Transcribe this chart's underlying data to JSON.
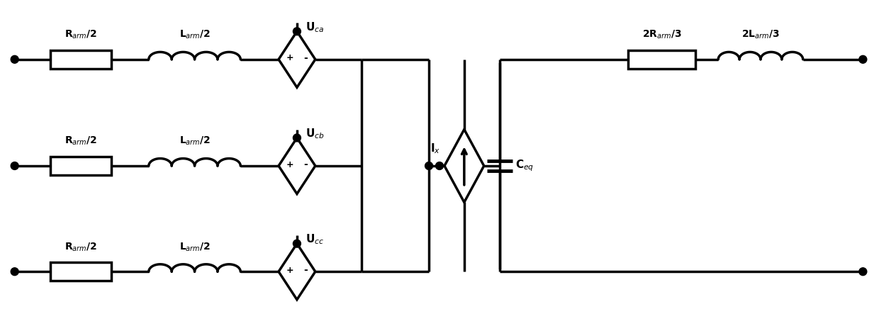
{
  "bg_color": "#ffffff",
  "line_color": "#000000",
  "lw": 2.5,
  "fig_width": 12.4,
  "fig_height": 4.67,
  "labels": {
    "R_arm_a": "R$_{arm}$/2",
    "L_arm_a": "L$_{arm}$/2",
    "U_ca": "U$_{ca}$",
    "U_cb": "U$_{cb}$",
    "U_cc": "U$_{cc}$",
    "I_x": "I$_{x}$",
    "C_eq": "C$_{eq}$",
    "R_arm2": "2R$_{arm}$/3",
    "L_arm2": "2L$_{arm}$/3"
  }
}
